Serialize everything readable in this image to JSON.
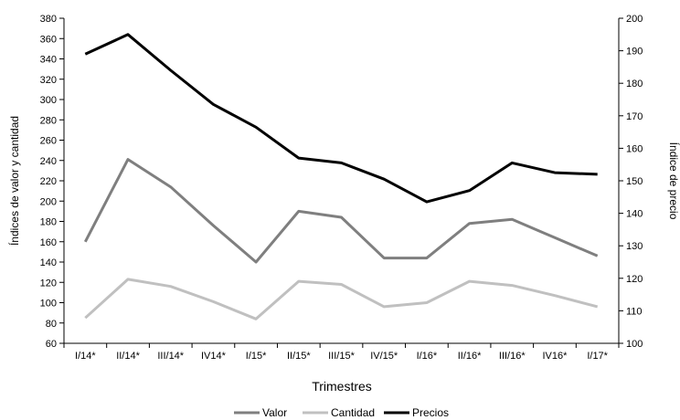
{
  "chart_data": {
    "type": "line",
    "categories": [
      "I/14*",
      "II/14*",
      "III/14*",
      "IV14*",
      "I/15*",
      "II/15*",
      "III/15*",
      "IV/15*",
      "I/16*",
      "II/16*",
      "III/16*",
      "IV16*",
      "I/17*"
    ],
    "series": [
      {
        "name": "Valor",
        "axis": "left",
        "color": "#7f7f7f",
        "values": [
          160,
          241,
          214,
          176,
          140,
          190,
          184,
          144,
          144,
          178,
          182,
          164,
          146
        ]
      },
      {
        "name": "Cantidad",
        "axis": "left",
        "color": "#c0c0c0",
        "values": [
          85,
          123,
          116,
          101,
          84,
          121,
          118,
          96,
          100,
          121,
          117,
          107,
          96
        ]
      },
      {
        "name": "Precios",
        "axis": "right",
        "color": "#000000",
        "values": [
          189,
          195,
          184,
          173.5,
          166.5,
          157,
          155.5,
          150.5,
          143.5,
          147,
          155.5,
          152.5,
          152
        ]
      }
    ],
    "xlabel": "Trimestres",
    "ylabel": "Índices de valor y cantidad",
    "y2label": "Índice de precio",
    "ylim": [
      60,
      380
    ],
    "y2lim": [
      100,
      200
    ],
    "yticks": [
      60,
      80,
      100,
      120,
      140,
      160,
      180,
      200,
      220,
      240,
      260,
      280,
      300,
      320,
      340,
      360,
      380
    ],
    "y2ticks": [
      100,
      110,
      120,
      130,
      140,
      150,
      160,
      170,
      180,
      190,
      200
    ],
    "grid": false,
    "legend": "bottom"
  }
}
